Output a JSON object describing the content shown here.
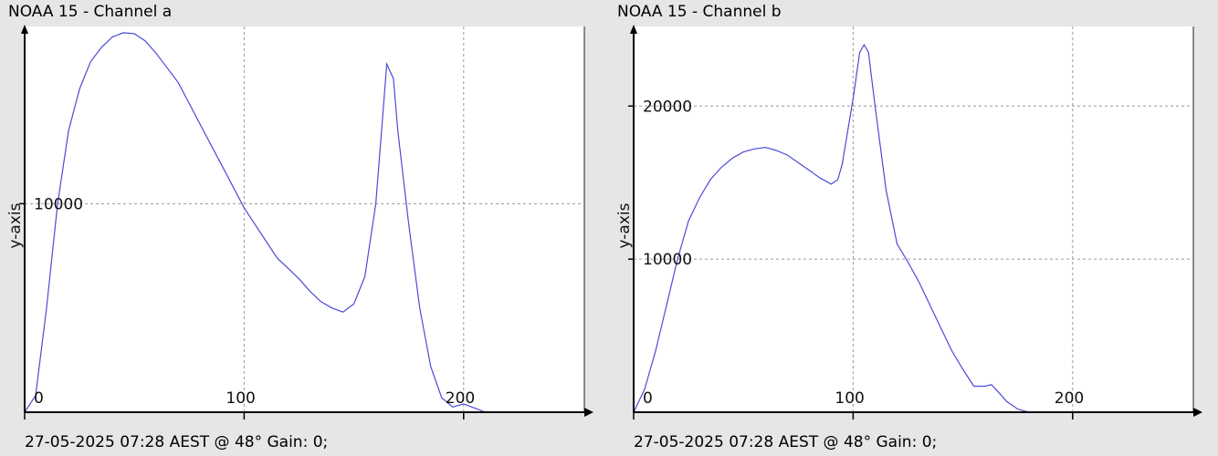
{
  "colors": {
    "background": "#e6e6e6",
    "plot_bg": "#ffffff",
    "series": "#4b4bd6",
    "grid": "#9a9a9a",
    "axis": "#000000"
  },
  "panels": [
    {
      "title": "NOAA 15 - Channel a",
      "footer": "27-05-2025 07:28 AEST @ 48° Gain: 0;"
    },
    {
      "title": "NOAA 15 - Channel b",
      "footer": "27-05-2025 07:28 AEST @ 48° Gain: 0;"
    }
  ],
  "chart_data": [
    {
      "type": "line",
      "title": "NOAA 15 - Channel a",
      "xlabel": "",
      "ylabel": "y-axis",
      "xlim": [
        0,
        255
      ],
      "ylim": [
        0,
        18500
      ],
      "xticks": [
        0,
        100,
        200
      ],
      "yticks": [
        10000
      ],
      "grid": true,
      "series": [
        {
          "x": [
            0,
            5,
            10,
            15,
            20,
            25,
            30,
            35,
            40,
            45,
            50,
            55,
            60,
            65,
            70,
            75,
            80,
            85,
            90,
            95,
            100,
            105,
            110,
            115,
            120,
            125,
            130,
            135,
            140,
            145,
            150,
            155,
            160,
            163,
            165,
            168,
            170,
            175,
            180,
            185,
            190,
            195,
            200,
            205,
            210
          ],
          "y": [
            0,
            800,
            5000,
            10000,
            13500,
            15500,
            16800,
            17500,
            18000,
            18200,
            18150,
            17800,
            17200,
            16500,
            15800,
            14800,
            13800,
            12800,
            11800,
            10800,
            9800,
            9000,
            8200,
            7400,
            6900,
            6400,
            5800,
            5300,
            5000,
            4800,
            5200,
            6500,
            10000,
            14000,
            16700,
            16000,
            13500,
            9000,
            5000,
            2200,
            700,
            250,
            400,
            200,
            0
          ]
        }
      ]
    },
    {
      "type": "line",
      "title": "NOAA 15 - Channel b",
      "xlabel": "",
      "ylabel": "y-axis",
      "xlim": [
        0,
        255
      ],
      "ylim": [
        0,
        25200
      ],
      "xticks": [
        0,
        100,
        200
      ],
      "yticks": [
        10000,
        20000
      ],
      "grid": true,
      "series": [
        {
          "x": [
            0,
            5,
            10,
            15,
            20,
            25,
            30,
            35,
            40,
            45,
            50,
            55,
            60,
            65,
            70,
            75,
            80,
            85,
            90,
            93,
            95,
            100,
            103,
            105,
            107,
            110,
            115,
            120,
            125,
            130,
            135,
            140,
            145,
            150,
            155,
            160,
            163,
            165,
            170,
            175,
            180,
            185,
            190
          ],
          "y": [
            0,
            1500,
            4000,
            7000,
            10000,
            12500,
            14000,
            15200,
            16000,
            16600,
            17000,
            17200,
            17300,
            17100,
            16800,
            16300,
            15800,
            15300,
            14900,
            15200,
            16200,
            20500,
            23500,
            24000,
            23500,
            20000,
            14500,
            11000,
            9800,
            8500,
            7000,
            5500,
            4000,
            2800,
            1700,
            1700,
            1800,
            1500,
            700,
            200,
            0,
            0,
            0
          ]
        }
      ]
    }
  ]
}
